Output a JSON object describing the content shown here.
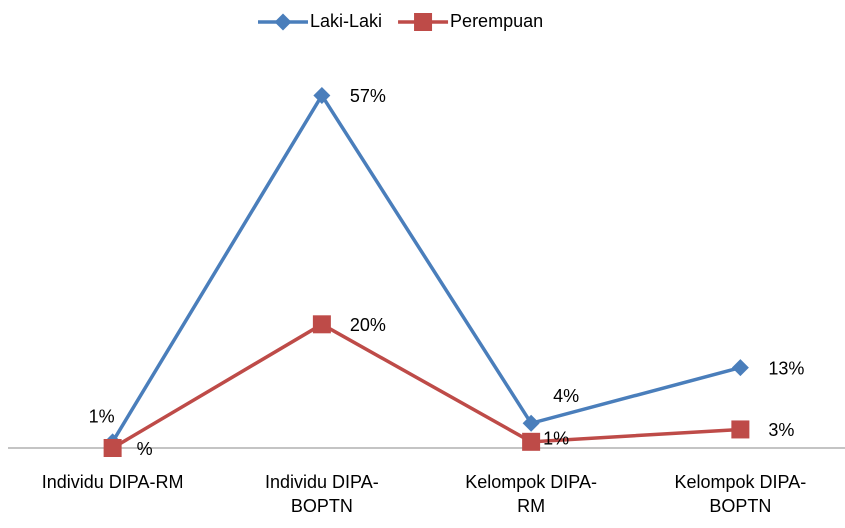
{
  "chart_data": {
    "type": "line",
    "categories": [
      "Individu DIPA-RM",
      "Individu DIPA-BOPTN",
      "Kelompok DIPA-RM",
      "Kelompok DIPA-BOPTN"
    ],
    "series": [
      {
        "name": "Laki-Laki",
        "color": "#4a7ebb",
        "values": [
          1,
          57,
          4,
          13
        ],
        "value_labels": [
          "1%",
          "57%",
          "4%",
          "13%"
        ]
      },
      {
        "name": "Perempuan",
        "color": "#be4b48",
        "values": [
          0,
          20,
          1,
          3
        ],
        "value_labels": [
          "%",
          "20%",
          "1%",
          "3%"
        ]
      }
    ],
    "ylim": [
      0,
      65
    ],
    "grid": false,
    "legend": "top"
  }
}
